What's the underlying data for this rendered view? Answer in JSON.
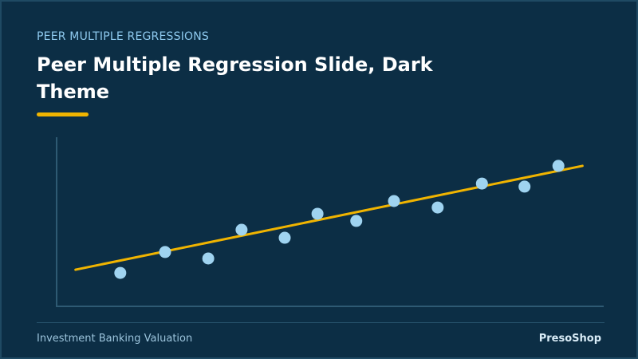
{
  "header": {
    "kicker": "PEER MULTIPLE REGRESSIONS",
    "title": "Peer Multiple Regression Slide, Dark Theme"
  },
  "chart_data": {
    "type": "scatter",
    "x": [
      11.8,
      20.0,
      27.9,
      34.0,
      41.9,
      47.9,
      55.0,
      61.9,
      69.9,
      78.0,
      85.8,
      92.0
    ],
    "values": [
      19.2,
      31.5,
      27.7,
      44.6,
      39.9,
      54.0,
      49.8,
      61.5,
      57.7,
      71.8,
      70.0,
      82.2
    ],
    "color": "#9fd3f0",
    "trend": {
      "x": [
        3.6,
        96.4
      ],
      "y": [
        21.1,
        82.2
      ],
      "color": "#f0b400"
    },
    "xlim": [
      0,
      100
    ],
    "ylim": [
      0,
      100
    ]
  },
  "footer": {
    "left": "Investment Banking Valuation",
    "right": "PresoShop"
  }
}
